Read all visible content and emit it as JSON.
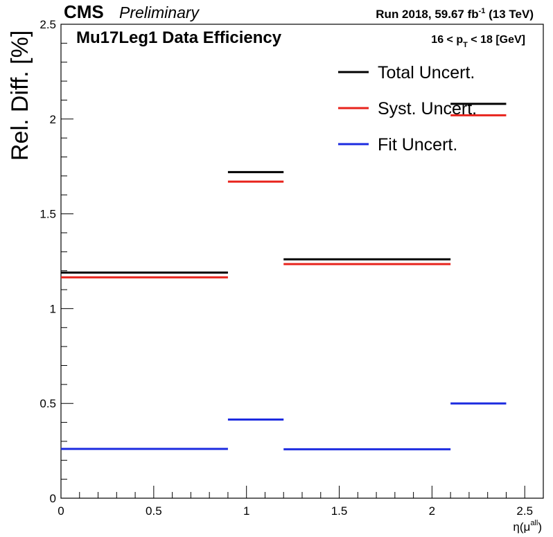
{
  "header": {
    "experiment": "CMS",
    "status": "Preliminary",
    "run_info": "Run 2018,  59.67 fb",
    "lumi_exponent": "-1",
    "energy": " (13 TeV)"
  },
  "plot_title": "Mu17Leg1 Data Efficiency",
  "pt_range": {
    "prefix": "16 < p",
    "subscript": "T",
    "suffix": " < 18 [GeV]"
  },
  "chart_data": {
    "type": "line",
    "style": "step histogram (horizontal bin segments)",
    "xlabel": "η(μ",
    "xlabel_superscript": "all",
    "xlabel_close": ")",
    "ylabel": "Rel. Diff. [%]",
    "xlim": [
      0,
      2.6
    ],
    "ylim": [
      0,
      2.5
    ],
    "x_ticks": [
      "0",
      "0.5",
      "1",
      "1.5",
      "2",
      "2.5"
    ],
    "y_ticks": [
      "0",
      "0.5",
      "1",
      "1.5",
      "2",
      "2.5"
    ],
    "bin_edges": [
      0,
      0.9,
      1.2,
      2.1,
      2.4
    ],
    "legend_position": "top-right",
    "grid": false,
    "series": [
      {
        "name": "Total Uncert.",
        "color": "#000000",
        "values": [
          1.19,
          1.72,
          1.26,
          2.08
        ]
      },
      {
        "name": "Syst. Uncert.",
        "color": "#e8231c",
        "values": [
          1.165,
          1.67,
          1.235,
          2.02
        ]
      },
      {
        "name": "Fit Uncert.",
        "color": "#1c2be0",
        "values": [
          0.26,
          0.415,
          0.258,
          0.5
        ]
      }
    ]
  }
}
